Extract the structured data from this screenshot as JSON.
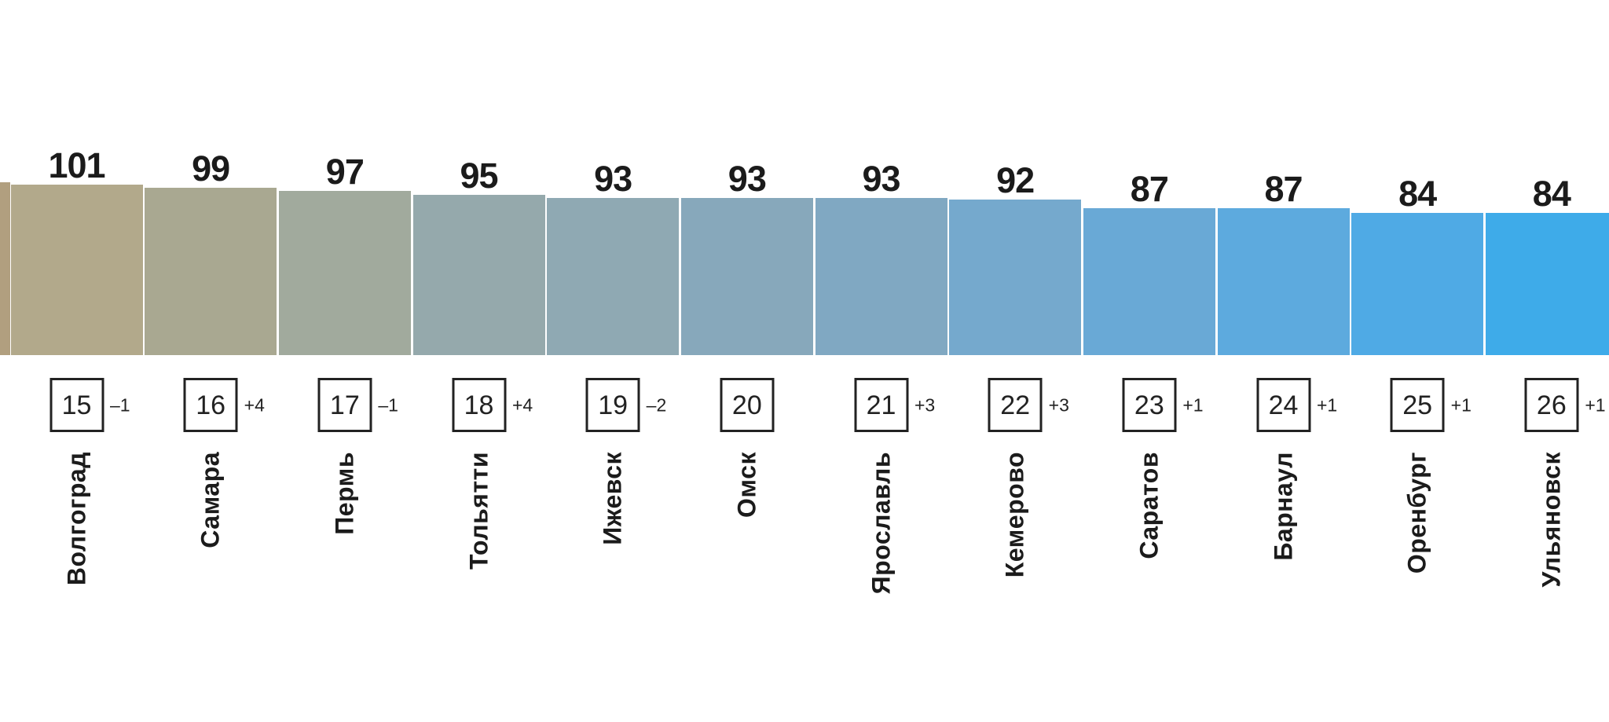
{
  "chart_data": {
    "type": "bar",
    "title": "",
    "xlabel": "",
    "ylabel": "",
    "legend": null,
    "grid": false,
    "categories": [
      "Волгоград",
      "Самара",
      "Пермь",
      "Тольятти",
      "Ижевск",
      "Омск",
      "Ярославль",
      "Кемерово",
      "Саратов",
      "Барнаул",
      "Оренбург",
      "Ульяновск"
    ],
    "values": [
      101,
      99,
      97,
      95,
      93,
      93,
      93,
      92,
      87,
      87,
      84,
      84
    ],
    "ranks": [
      15,
      16,
      17,
      18,
      19,
      20,
      21,
      22,
      23,
      24,
      25,
      26
    ],
    "rank_changes": [
      "–1",
      "+4",
      "–1",
      "+4",
      "–2",
      "",
      "+3",
      "+3",
      "+1",
      "+1",
      "+1",
      "+1"
    ],
    "bar_colors": [
      "#b2a98b",
      "#a9a891",
      "#a1aa9d",
      "#95a9ac",
      "#8fa9b3",
      "#87a8bb",
      "#80a8c2",
      "#75a9cd",
      "#69a9d6",
      "#5daade",
      "#4faae5",
      "#3eabe9"
    ],
    "partial_left_bar_color": "#b19f7f",
    "value_label_color": "#1b1b1b",
    "rank_box_border_color": "#222222"
  }
}
